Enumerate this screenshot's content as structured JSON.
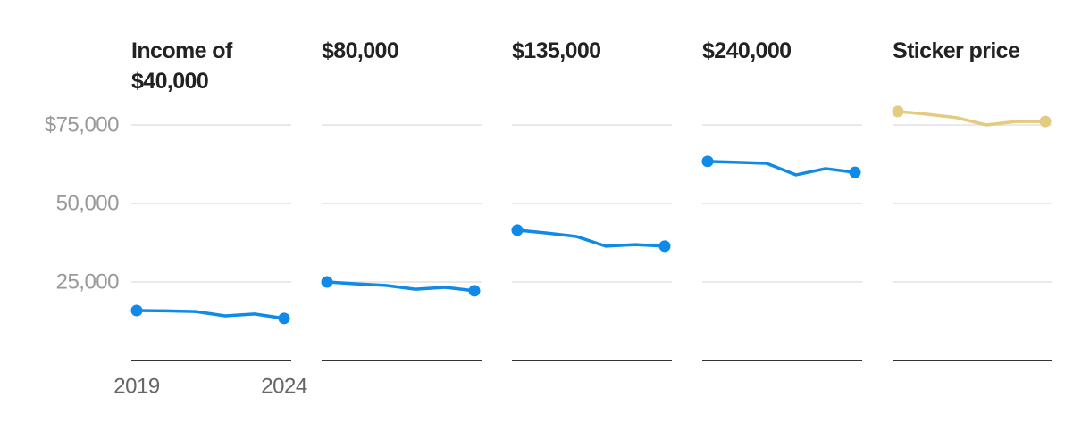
{
  "chart_data": [
    {
      "type": "line",
      "title": "Income of $40,000",
      "x": [
        2019,
        2020,
        2021,
        2022,
        2023,
        2024
      ],
      "values": [
        15900,
        15800,
        15600,
        14200,
        14800,
        13400
      ],
      "color": "#0f8ae8",
      "ylim": [
        0,
        75000
      ],
      "yticks": [
        {
          "value": 25000,
          "label": "25,000"
        },
        {
          "value": 50000,
          "label": "50,000"
        },
        {
          "value": 75000,
          "label": "$75,000"
        }
      ],
      "xlim": [
        2019,
        2024
      ],
      "xticks": [
        2019,
        2024
      ],
      "grid": true
    },
    {
      "type": "line",
      "title": "$80,000",
      "x": [
        2019,
        2020,
        2021,
        2022,
        2023,
        2024
      ],
      "values": [
        25000,
        24400,
        23900,
        22700,
        23300,
        22200
      ],
      "color": "#0f8ae8"
    },
    {
      "type": "line",
      "title": "$135,000",
      "x": [
        2019,
        2020,
        2021,
        2022,
        2023,
        2024
      ],
      "values": [
        41500,
        40600,
        39500,
        36400,
        36900,
        36400
      ],
      "color": "#0f8ae8"
    },
    {
      "type": "line",
      "title": "$240,000",
      "x": [
        2019,
        2020,
        2021,
        2022,
        2023,
        2024
      ],
      "values": [
        63400,
        63100,
        62800,
        59100,
        61100,
        59900
      ],
      "color": "#0f8ae8"
    },
    {
      "type": "line",
      "title": "Sticker price",
      "x": [
        2019,
        2020,
        2021,
        2022,
        2023,
        2024
      ],
      "values": [
        79300,
        78400,
        77300,
        75000,
        76100,
        76100
      ],
      "color": "#e3cc80"
    }
  ]
}
